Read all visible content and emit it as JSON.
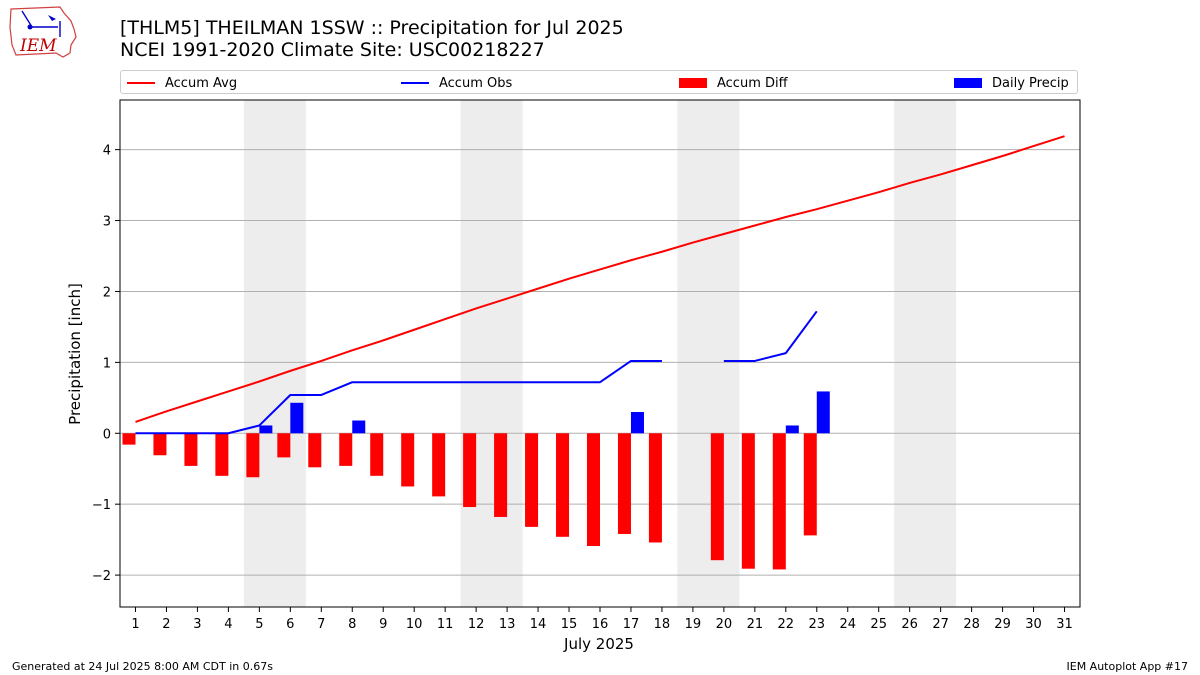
{
  "header": {
    "title_line1": "[THLM5] THEILMAN 1SSW :: Precipitation for Jul 2025",
    "title_line2": "NCEI 1991-2020 Climate Site: USC00218227"
  },
  "logo": {
    "text": "IEM"
  },
  "legend": {
    "accum_avg": "Accum Avg",
    "accum_obs": "Accum Obs",
    "accum_diff": "Accum Diff",
    "daily_precip": "Daily Precip"
  },
  "colors": {
    "avg": "#ff0000",
    "obs": "#0000ff",
    "diff": "#ff0000",
    "daily": "#0000ff",
    "weekend": "#ededed",
    "grid": "#b0b0b0"
  },
  "footer": {
    "generated": "Generated at 24 Jul 2025 8:00 AM CDT in 0.67s",
    "app": "IEM Autoplot App #17"
  },
  "chart_data": {
    "type": "bar",
    "xlabel": "July 2025",
    "ylabel": "Precipitation [inch]",
    "ylim": [
      -2.45,
      4.7
    ],
    "xlim": [
      0.5,
      31.5
    ],
    "yticks": [
      -2,
      -1,
      0,
      1,
      2,
      3,
      4
    ],
    "ytick_labels": [
      "−2",
      "−1",
      "0",
      "1",
      "2",
      "3",
      "4"
    ],
    "grid": true,
    "legend_placement": "top",
    "weekend_bands": [
      [
        4.5,
        6.5
      ],
      [
        11.5,
        13.5
      ],
      [
        18.5,
        20.5
      ],
      [
        25.5,
        27.5
      ]
    ],
    "days": [
      1,
      2,
      3,
      4,
      5,
      6,
      7,
      8,
      9,
      10,
      11,
      12,
      13,
      14,
      15,
      16,
      17,
      18,
      19,
      20,
      21,
      22,
      23,
      24,
      25,
      26,
      27,
      28,
      29,
      30,
      31
    ],
    "series": [
      {
        "name": "Accum Avg",
        "kind": "line",
        "color": "#ff0000",
        "values": [
          0.16,
          0.31,
          0.45,
          0.59,
          0.73,
          0.88,
          1.02,
          1.17,
          1.31,
          1.46,
          1.61,
          1.76,
          1.9,
          2.04,
          2.18,
          2.31,
          2.44,
          2.56,
          2.69,
          2.81,
          2.93,
          3.05,
          3.16,
          3.28,
          3.4,
          3.53,
          3.65,
          3.78,
          3.91,
          4.05,
          4.19
        ]
      },
      {
        "name": "Accum Obs",
        "kind": "line",
        "color": "#0000ff",
        "values": [
          0.0,
          0.0,
          0.0,
          0.0,
          0.11,
          0.54,
          0.54,
          0.72,
          0.72,
          0.72,
          0.72,
          0.72,
          0.72,
          0.72,
          0.72,
          0.72,
          1.02,
          1.02,
          null,
          1.02,
          1.02,
          1.13,
          1.72,
          null,
          null,
          null,
          null,
          null,
          null,
          null,
          null
        ]
      },
      {
        "name": "Accum Diff",
        "kind": "bar",
        "color": "#ff0000",
        "values": [
          -0.16,
          -0.31,
          -0.46,
          -0.6,
          -0.62,
          -0.34,
          -0.48,
          -0.46,
          -0.6,
          -0.75,
          -0.89,
          -1.04,
          -1.18,
          -1.32,
          -1.46,
          -1.59,
          -1.42,
          -1.54,
          null,
          -1.79,
          -1.91,
          -1.92,
          -1.44,
          null,
          null,
          null,
          null,
          null,
          null,
          null,
          null
        ]
      },
      {
        "name": "Daily Precip",
        "kind": "bar",
        "color": "#0000ff",
        "values": [
          0,
          0,
          0,
          0,
          0.11,
          0.43,
          0,
          0.18,
          0,
          0,
          0,
          0,
          0,
          0,
          0,
          0,
          0.3,
          0,
          null,
          0,
          0,
          0.11,
          0.59,
          null,
          null,
          null,
          null,
          null,
          null,
          null,
          null
        ]
      }
    ]
  }
}
